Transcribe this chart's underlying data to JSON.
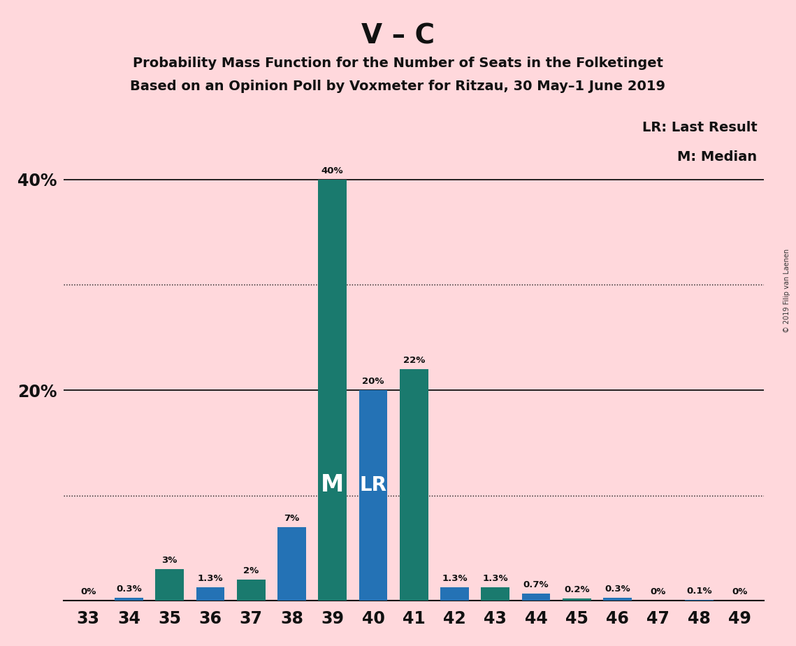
{
  "title_main": "V – C",
  "title_sub1": "Probability Mass Function for the Number of Seats in the Folketinget",
  "title_sub2": "Based on an Opinion Poll by Voxmeter for Ritzau, 30 May–1 June 2019",
  "copyright": "© 2019 Filip van Laenen",
  "categories": [
    33,
    34,
    35,
    36,
    37,
    38,
    39,
    40,
    41,
    42,
    43,
    44,
    45,
    46,
    47,
    48,
    49
  ],
  "values": [
    0.0,
    0.3,
    3.0,
    1.3,
    2.0,
    7.0,
    40.0,
    20.0,
    22.0,
    1.3,
    1.3,
    0.7,
    0.2,
    0.3,
    0.0,
    0.1,
    0.0
  ],
  "labels": [
    "0%",
    "0.3%",
    "3%",
    "1.3%",
    "2%",
    "7%",
    "40%",
    "20%",
    "22%",
    "1.3%",
    "1.3%",
    "0.7%",
    "0.2%",
    "0.3%",
    "0%",
    "0.1%",
    "0%"
  ],
  "bar_colors": [
    "#1a7a6e",
    "#2472b5",
    "#1a7a6e",
    "#2472b5",
    "#1a7a6e",
    "#2472b5",
    "#1a7a6e",
    "#2472b5",
    "#1a7a6e",
    "#2472b5",
    "#1a7a6e",
    "#2472b5",
    "#1a7a6e",
    "#2472b5",
    "#1a7a6e",
    "#2472b5",
    "#1a7a6e"
  ],
  "median_idx": 6,
  "lr_idx": 7,
  "median_label": "M",
  "lr_label": "LR",
  "legend_lr": "LR: Last Result",
  "legend_m": "M: Median",
  "background_color": "#ffd8dc",
  "ylim": [
    0,
    46
  ],
  "bar_width": 0.7,
  "color_teal": "#1a7a6e",
  "color_blue": "#2472b5",
  "dotted_line_y": [
    10,
    30
  ],
  "solid_line_y": [
    20,
    40
  ]
}
